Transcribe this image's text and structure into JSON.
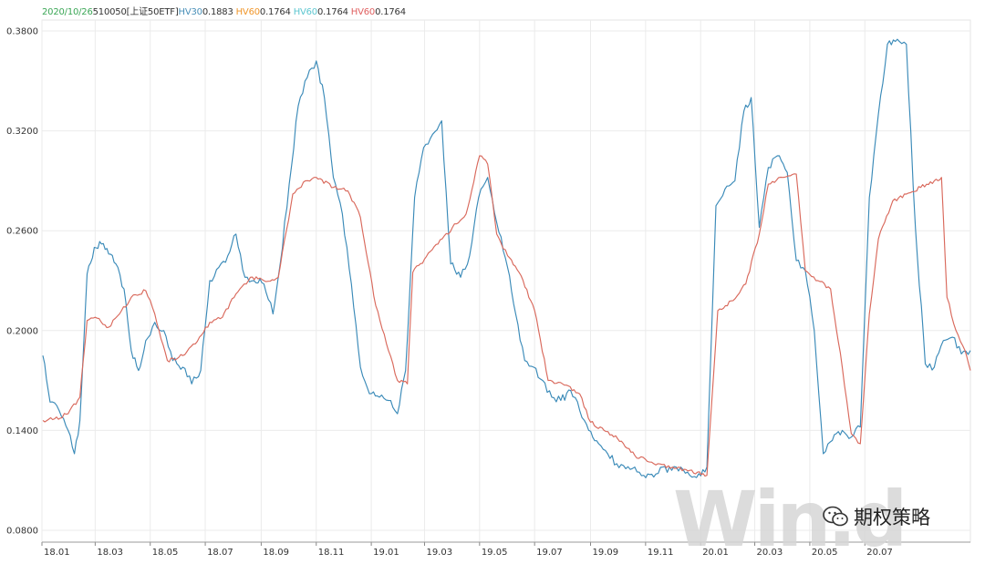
{
  "legend": {
    "date": "2020/10/26",
    "instrument": "510050[上证50ETF]",
    "items": [
      {
        "label": "HV30",
        "value": "0.1883",
        "label_color": "#4a90b8"
      },
      {
        "label": "HV60",
        "value": "0.1764",
        "label_color": "#f0962a"
      },
      {
        "label": "HV60",
        "value": "0.1764",
        "label_color": "#5cc6d0"
      },
      {
        "label": "HV60",
        "value": "0.1764",
        "label_color": "#e06060"
      }
    ],
    "date_color": "#3aa655",
    "text_color": "#333333"
  },
  "watermark": "Win.d",
  "brand": {
    "name": "期权策略",
    "icon": "wechat-icon"
  },
  "chart_data": {
    "type": "line",
    "title": "",
    "xlabel": "",
    "ylabel": "",
    "ylim": [
      0.08,
      0.38
    ],
    "yticks": [
      "0.3800",
      "0.3200",
      "0.2600",
      "0.2000",
      "0.1400",
      "0.0800"
    ],
    "xticks": [
      "18.01",
      "18.03",
      "18.05",
      "18.07",
      "18.09",
      "18.11",
      "19.01",
      "19.03",
      "19.05",
      "19.07",
      "19.09",
      "19.11",
      "20.01",
      "20.03",
      "20.05",
      "20.07"
    ],
    "xrange": [
      "2018-01",
      "2020-10"
    ],
    "grid": true,
    "series": [
      {
        "name": "HV30",
        "color": "#3a8ab8",
        "points": [
          [
            "2018-01-02",
            0.185
          ],
          [
            "2018-01-10",
            0.157
          ],
          [
            "2018-01-20",
            0.152
          ],
          [
            "2018-01-30",
            0.14
          ],
          [
            "2018-02-06",
            0.126
          ],
          [
            "2018-02-12",
            0.146
          ],
          [
            "2018-02-20",
            0.234
          ],
          [
            "2018-02-28",
            0.25
          ],
          [
            "2018-03-08",
            0.252
          ],
          [
            "2018-03-16",
            0.246
          ],
          [
            "2018-03-24",
            0.24
          ],
          [
            "2018-04-02",
            0.225
          ],
          [
            "2018-04-10",
            0.188
          ],
          [
            "2018-04-18",
            0.176
          ],
          [
            "2018-04-26",
            0.194
          ],
          [
            "2018-05-06",
            0.205
          ],
          [
            "2018-05-16",
            0.2
          ],
          [
            "2018-05-26",
            0.182
          ],
          [
            "2018-06-06",
            0.178
          ],
          [
            "2018-06-16",
            0.168
          ],
          [
            "2018-06-26",
            0.176
          ],
          [
            "2018-07-06",
            0.23
          ],
          [
            "2018-07-16",
            0.238
          ],
          [
            "2018-07-26",
            0.245
          ],
          [
            "2018-08-04",
            0.258
          ],
          [
            "2018-08-14",
            0.232
          ],
          [
            "2018-08-24",
            0.23
          ],
          [
            "2018-09-04",
            0.228
          ],
          [
            "2018-09-14",
            0.21
          ],
          [
            "2018-09-22",
            0.24
          ],
          [
            "2018-10-02",
            0.288
          ],
          [
            "2018-10-12",
            0.335
          ],
          [
            "2018-10-22",
            0.352
          ],
          [
            "2018-11-01",
            0.362
          ],
          [
            "2018-11-10",
            0.34
          ],
          [
            "2018-11-20",
            0.292
          ],
          [
            "2018-11-30",
            0.27
          ],
          [
            "2018-12-10",
            0.228
          ],
          [
            "2018-12-20",
            0.178
          ],
          [
            "2018-12-30",
            0.162
          ],
          [
            "2019-01-10",
            0.16
          ],
          [
            "2019-01-20",
            0.158
          ],
          [
            "2019-01-30",
            0.15
          ],
          [
            "2019-02-08",
            0.176
          ],
          [
            "2019-02-18",
            0.28
          ],
          [
            "2019-02-28",
            0.31
          ],
          [
            "2019-03-10",
            0.318
          ],
          [
            "2019-03-20",
            0.326
          ],
          [
            "2019-03-30",
            0.24
          ],
          [
            "2019-04-10",
            0.232
          ],
          [
            "2019-04-20",
            0.245
          ],
          [
            "2019-04-30",
            0.28
          ],
          [
            "2019-05-10",
            0.292
          ],
          [
            "2019-05-20",
            0.265
          ],
          [
            "2019-06-01",
            0.238
          ],
          [
            "2019-06-10",
            0.21
          ],
          [
            "2019-06-20",
            0.182
          ],
          [
            "2019-06-30",
            0.178
          ],
          [
            "2019-07-10",
            0.17
          ],
          [
            "2019-07-20",
            0.16
          ],
          [
            "2019-07-30",
            0.158
          ],
          [
            "2019-08-10",
            0.164
          ],
          [
            "2019-08-20",
            0.152
          ],
          [
            "2019-08-30",
            0.14
          ],
          [
            "2019-09-10",
            0.132
          ],
          [
            "2019-09-20",
            0.126
          ],
          [
            "2019-09-30",
            0.12
          ],
          [
            "2019-10-10",
            0.117
          ],
          [
            "2019-10-20",
            0.118
          ],
          [
            "2019-10-30",
            0.113
          ],
          [
            "2019-11-10",
            0.112
          ],
          [
            "2019-11-20",
            0.118
          ],
          [
            "2019-11-30",
            0.116
          ],
          [
            "2019-12-10",
            0.118
          ],
          [
            "2019-12-20",
            0.113
          ],
          [
            "2019-12-30",
            0.114
          ],
          [
            "2020-01-08",
            0.118
          ],
          [
            "2020-01-18",
            0.275
          ],
          [
            "2020-01-28",
            0.285
          ],
          [
            "2020-02-08",
            0.29
          ],
          [
            "2020-02-18",
            0.332
          ],
          [
            "2020-02-26",
            0.34
          ],
          [
            "2020-03-06",
            0.262
          ],
          [
            "2020-03-16",
            0.298
          ],
          [
            "2020-03-26",
            0.305
          ],
          [
            "2020-04-06",
            0.295
          ],
          [
            "2020-04-16",
            0.242
          ],
          [
            "2020-04-26",
            0.236
          ],
          [
            "2020-05-06",
            0.2
          ],
          [
            "2020-05-16",
            0.126
          ],
          [
            "2020-05-26",
            0.134
          ],
          [
            "2020-06-06",
            0.14
          ],
          [
            "2020-06-16",
            0.136
          ],
          [
            "2020-06-26",
            0.142
          ],
          [
            "2020-07-06",
            0.28
          ],
          [
            "2020-07-16",
            0.33
          ],
          [
            "2020-07-26",
            0.372
          ],
          [
            "2020-08-06",
            0.375
          ],
          [
            "2020-08-16",
            0.372
          ],
          [
            "2020-08-26",
            0.262
          ],
          [
            "2020-09-06",
            0.18
          ],
          [
            "2020-09-16",
            0.178
          ],
          [
            "2020-09-26",
            0.194
          ],
          [
            "2020-10-06",
            0.196
          ],
          [
            "2020-10-16",
            0.186
          ],
          [
            "2020-10-26",
            0.188
          ]
        ]
      },
      {
        "name": "HV60",
        "color": "#d9695c",
        "points": [
          [
            "2018-01-02",
            0.146
          ],
          [
            "2018-01-15",
            0.147
          ],
          [
            "2018-01-30",
            0.15
          ],
          [
            "2018-02-12",
            0.16
          ],
          [
            "2018-02-20",
            0.206
          ],
          [
            "2018-03-01",
            0.208
          ],
          [
            "2018-03-16",
            0.202
          ],
          [
            "2018-03-28",
            0.21
          ],
          [
            "2018-04-10",
            0.22
          ],
          [
            "2018-04-26",
            0.224
          ],
          [
            "2018-05-06",
            0.21
          ],
          [
            "2018-05-20",
            0.182
          ],
          [
            "2018-06-06",
            0.185
          ],
          [
            "2018-06-20",
            0.192
          ],
          [
            "2018-07-06",
            0.205
          ],
          [
            "2018-07-20",
            0.208
          ],
          [
            "2018-08-04",
            0.222
          ],
          [
            "2018-08-20",
            0.232
          ],
          [
            "2018-09-04",
            0.23
          ],
          [
            "2018-09-20",
            0.232
          ],
          [
            "2018-10-06",
            0.282
          ],
          [
            "2018-10-20",
            0.29
          ],
          [
            "2018-11-01",
            0.292
          ],
          [
            "2018-11-20",
            0.286
          ],
          [
            "2018-12-06",
            0.284
          ],
          [
            "2018-12-20",
            0.268
          ],
          [
            "2019-01-06",
            0.215
          ],
          [
            "2019-01-20",
            0.188
          ],
          [
            "2019-01-30",
            0.17
          ],
          [
            "2019-02-10",
            0.168
          ],
          [
            "2019-02-16",
            0.235
          ],
          [
            "2019-03-01",
            0.243
          ],
          [
            "2019-03-16",
            0.252
          ],
          [
            "2019-04-01",
            0.262
          ],
          [
            "2019-04-16",
            0.27
          ],
          [
            "2019-05-01",
            0.305
          ],
          [
            "2019-05-10",
            0.3
          ],
          [
            "2019-05-20",
            0.258
          ],
          [
            "2019-06-01",
            0.245
          ],
          [
            "2019-06-16",
            0.233
          ],
          [
            "2019-07-01",
            0.212
          ],
          [
            "2019-07-16",
            0.17
          ],
          [
            "2019-08-01",
            0.168
          ],
          [
            "2019-08-20",
            0.162
          ],
          [
            "2019-09-01",
            0.145
          ],
          [
            "2019-09-16",
            0.14
          ],
          [
            "2019-10-01",
            0.135
          ],
          [
            "2019-10-20",
            0.125
          ],
          [
            "2019-11-10",
            0.12
          ],
          [
            "2019-12-01",
            0.118
          ],
          [
            "2019-12-20",
            0.116
          ],
          [
            "2020-01-08",
            0.113
          ],
          [
            "2020-01-20",
            0.212
          ],
          [
            "2020-02-06",
            0.218
          ],
          [
            "2020-02-20",
            0.228
          ],
          [
            "2020-03-06",
            0.258
          ],
          [
            "2020-03-16",
            0.288
          ],
          [
            "2020-04-01",
            0.292
          ],
          [
            "2020-04-16",
            0.294
          ],
          [
            "2020-04-26",
            0.236
          ],
          [
            "2020-05-10",
            0.23
          ],
          [
            "2020-05-24",
            0.225
          ],
          [
            "2020-06-06",
            0.178
          ],
          [
            "2020-06-16",
            0.138
          ],
          [
            "2020-06-26",
            0.132
          ],
          [
            "2020-07-06",
            0.21
          ],
          [
            "2020-07-16",
            0.255
          ],
          [
            "2020-08-01",
            0.278
          ],
          [
            "2020-08-16",
            0.282
          ],
          [
            "2020-09-01",
            0.286
          ],
          [
            "2020-09-16",
            0.29
          ],
          [
            "2020-09-24",
            0.292
          ],
          [
            "2020-09-30",
            0.22
          ],
          [
            "2020-10-10",
            0.2
          ],
          [
            "2020-10-20",
            0.188
          ],
          [
            "2020-10-26",
            0.176
          ]
        ]
      }
    ]
  }
}
